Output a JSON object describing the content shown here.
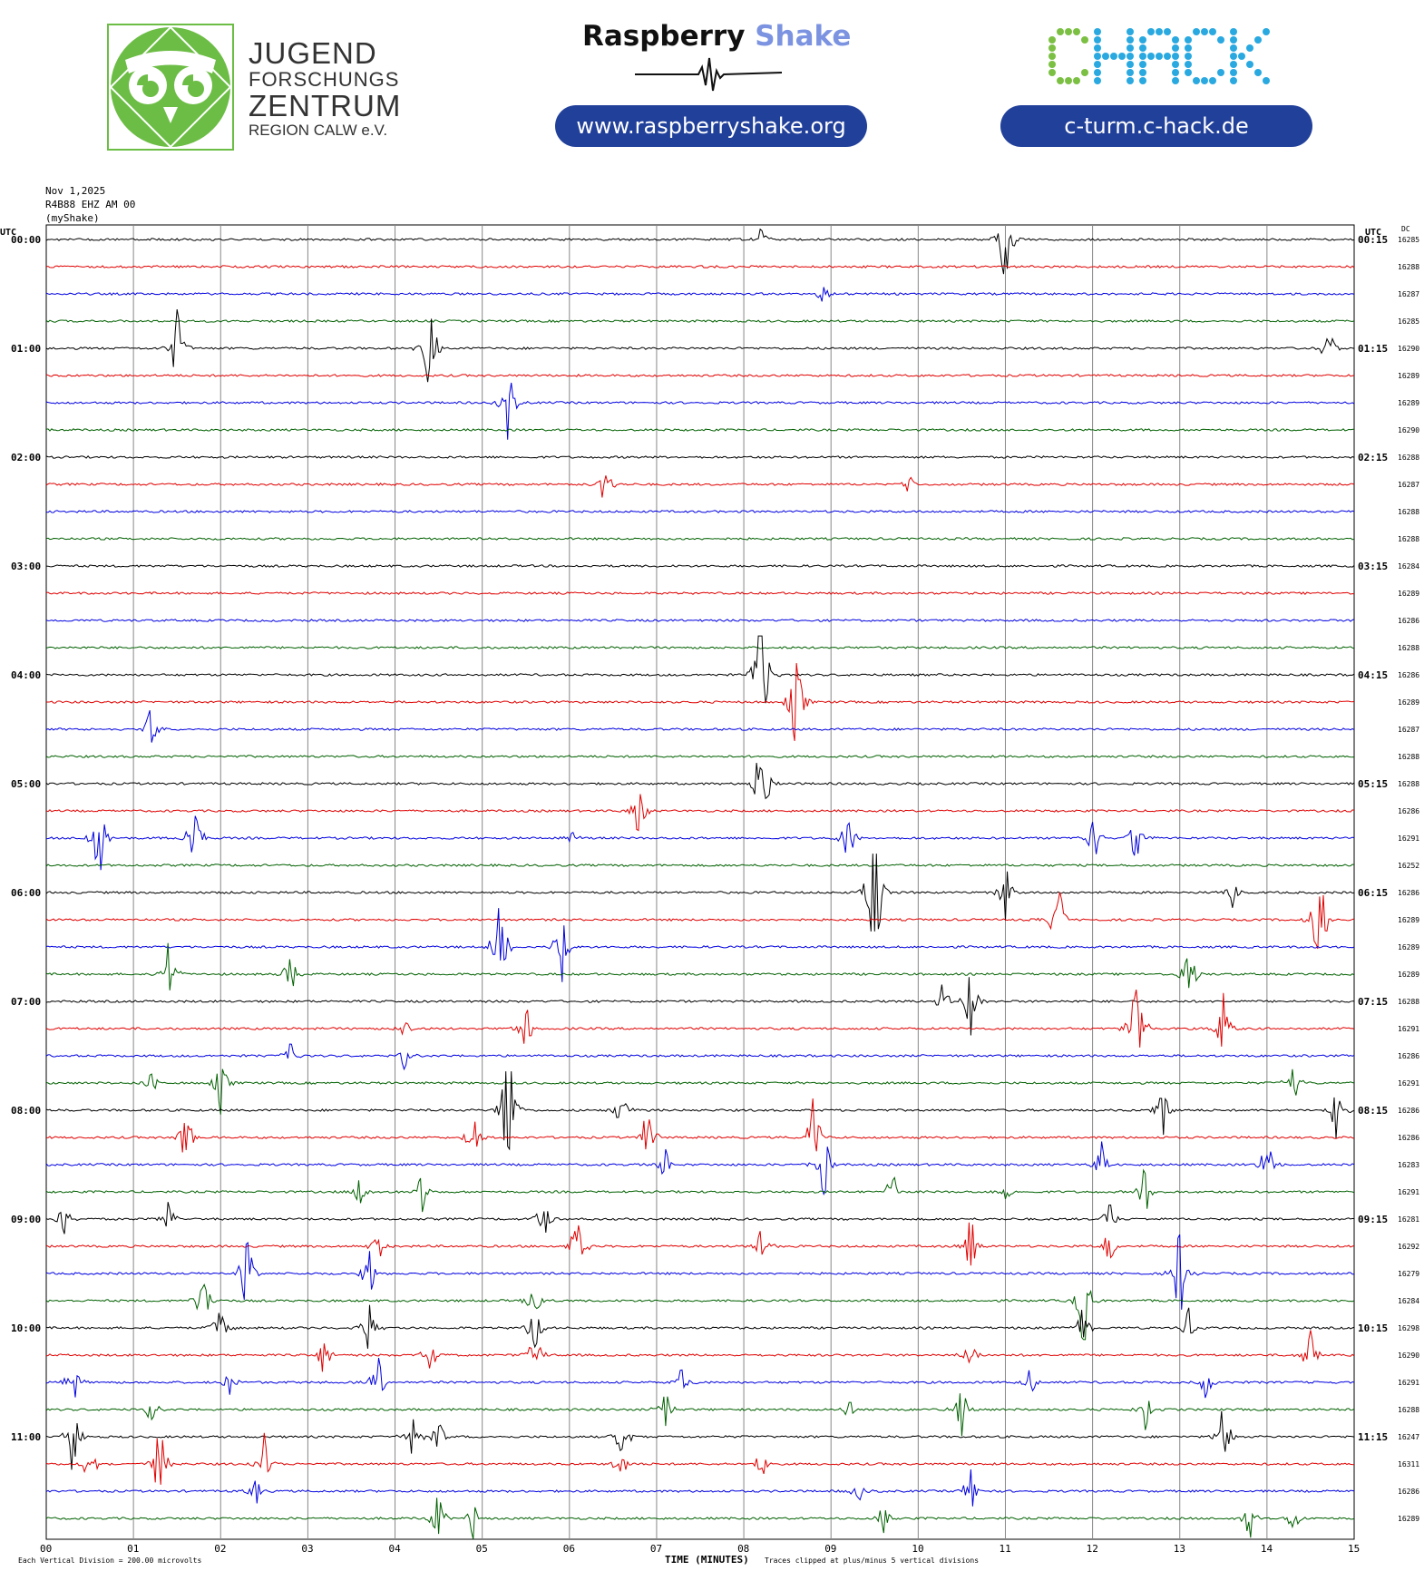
{
  "header": {
    "jfz": {
      "line1": "JUGEND",
      "line2": "FORSCHUNGS",
      "line3": "ZENTRUM",
      "line4": "REGION CALW e.V."
    },
    "raspberry_brand": {
      "word1": "Raspberry",
      "word2": "Shake"
    },
    "raspberry_url": "www.raspberryshake.org",
    "chack_logo_text": "CHACK",
    "chack_url": "c-turm.c-hack.de"
  },
  "meta": {
    "date": "Nov 1,2025",
    "station": "R4B88 EHZ AM 00",
    "network": "(myShake)"
  },
  "colors": {
    "trace_cycle": [
      "#000000",
      "#e00000",
      "#0000e0",
      "#006000"
    ],
    "grid": "#888888",
    "green_logo": "#6cbd45",
    "pill": "#21409a"
  },
  "chart_data": {
    "type": "helicorder",
    "xlabel": "TIME (MINUTES)",
    "x_ticks": [
      "00",
      "01",
      "02",
      "03",
      "04",
      "05",
      "06",
      "07",
      "08",
      "09",
      "10",
      "11",
      "12",
      "13",
      "14",
      "15"
    ],
    "xlim": [
      0,
      15
    ],
    "left_axis_label": "UTC",
    "right_axis_label": "UTC",
    "dc_label": "DC",
    "left_times": [
      "00:00",
      "01:00",
      "02:00",
      "03:00",
      "04:00",
      "05:00",
      "06:00",
      "07:00",
      "08:00",
      "09:00",
      "10:00",
      "11:00"
    ],
    "right_times": [
      "00:15",
      "01:15",
      "02:15",
      "03:15",
      "04:15",
      "05:15",
      "06:15",
      "07:15",
      "08:15",
      "09:15",
      "10:15",
      "11:15"
    ],
    "dc_values": [
      "16285",
      "16288",
      "16287",
      "16285",
      "16290",
      "16289",
      "16289",
      "16290",
      "16288",
      "16287",
      "16288",
      "16288",
      "16284",
      "16289",
      "16286",
      "16288",
      "16286",
      "16289",
      "16287",
      "16288",
      "16288",
      "16286",
      "16291",
      "16252",
      "16286",
      "16289",
      "16289",
      "16289",
      "16288",
      "16291",
      "16286",
      "16291",
      "16286",
      "16286",
      "16283",
      "16291",
      "16281",
      "16292",
      "16279",
      "16284",
      "16298",
      "16290",
      "16291",
      "16288",
      "16247",
      "16311",
      "16286",
      "16289"
    ],
    "vertical_division_note": "Each Vertical Division =  200.00 microvolts",
    "clip_note": "Traces clipped at plus/minus 5 vertical divisions",
    "rows": 48,
    "events": [
      {
        "row": 0,
        "min": 8.2,
        "amp": 0.5
      },
      {
        "row": 0,
        "min": 11.0,
        "amp": 2.5
      },
      {
        "row": 2,
        "min": 8.9,
        "amp": 0.4
      },
      {
        "row": 4,
        "min": 1.5,
        "amp": 2.0
      },
      {
        "row": 4,
        "min": 4.4,
        "amp": 2.5
      },
      {
        "row": 4,
        "min": 14.7,
        "amp": 1.2
      },
      {
        "row": 6,
        "min": 5.3,
        "amp": 1.6
      },
      {
        "row": 9,
        "min": 6.4,
        "amp": 1.2
      },
      {
        "row": 9,
        "min": 9.9,
        "amp": 0.4
      },
      {
        "row": 16,
        "min": 8.2,
        "amp": 4.0
      },
      {
        "row": 17,
        "min": 8.6,
        "amp": 2.5
      },
      {
        "row": 18,
        "min": 1.2,
        "amp": 1.1
      },
      {
        "row": 20,
        "min": 8.2,
        "amp": 3.0
      },
      {
        "row": 21,
        "min": 6.8,
        "amp": 1.3
      },
      {
        "row": 22,
        "min": 0.6,
        "amp": 2.5
      },
      {
        "row": 22,
        "min": 1.7,
        "amp": 2.2
      },
      {
        "row": 22,
        "min": 6.0,
        "amp": 0.6
      },
      {
        "row": 22,
        "min": 9.2,
        "amp": 1.2
      },
      {
        "row": 22,
        "min": 12.0,
        "amp": 1.6
      },
      {
        "row": 22,
        "min": 12.5,
        "amp": 1.3
      },
      {
        "row": 24,
        "min": 9.5,
        "amp": 5.0
      },
      {
        "row": 24,
        "min": 11.0,
        "amp": 1.3
      },
      {
        "row": 24,
        "min": 13.6,
        "amp": 0.7
      },
      {
        "row": 25,
        "min": 11.6,
        "amp": 2.0
      },
      {
        "row": 25,
        "min": 14.6,
        "amp": 3.0
      },
      {
        "row": 26,
        "min": 5.2,
        "amp": 2.5
      },
      {
        "row": 26,
        "min": 5.9,
        "amp": 2.0
      },
      {
        "row": 27,
        "min": 1.4,
        "amp": 1.5
      },
      {
        "row": 27,
        "min": 2.8,
        "amp": 1.0
      },
      {
        "row": 27,
        "min": 13.1,
        "amp": 1.5
      },
      {
        "row": 28,
        "min": 10.3,
        "amp": 1.2
      },
      {
        "row": 28,
        "min": 10.6,
        "amp": 1.6
      },
      {
        "row": 29,
        "min": 4.1,
        "amp": 0.5
      },
      {
        "row": 29,
        "min": 5.5,
        "amp": 1.2
      },
      {
        "row": 29,
        "min": 12.5,
        "amp": 3.5
      },
      {
        "row": 29,
        "min": 13.5,
        "amp": 1.5
      },
      {
        "row": 30,
        "min": 2.8,
        "amp": 0.6
      },
      {
        "row": 30,
        "min": 4.1,
        "amp": 0.6
      },
      {
        "row": 31,
        "min": 1.2,
        "amp": 0.5
      },
      {
        "row": 31,
        "min": 2.0,
        "amp": 1.2
      },
      {
        "row": 31,
        "min": 14.3,
        "amp": 1.2
      },
      {
        "row": 32,
        "min": 5.3,
        "amp": 5.0
      },
      {
        "row": 32,
        "min": 6.6,
        "amp": 1.2
      },
      {
        "row": 32,
        "min": 12.8,
        "amp": 1.5
      },
      {
        "row": 32,
        "min": 14.8,
        "amp": 1.5
      },
      {
        "row": 33,
        "min": 1.6,
        "amp": 1.5
      },
      {
        "row": 33,
        "min": 4.9,
        "amp": 1.0
      },
      {
        "row": 33,
        "min": 6.9,
        "amp": 1.6
      },
      {
        "row": 33,
        "min": 8.8,
        "amp": 2.0
      },
      {
        "row": 34,
        "min": 7.1,
        "amp": 0.8
      },
      {
        "row": 34,
        "min": 8.9,
        "amp": 2.5
      },
      {
        "row": 34,
        "min": 12.1,
        "amp": 1.0
      },
      {
        "row": 34,
        "min": 14.0,
        "amp": 1.3
      },
      {
        "row": 35,
        "min": 3.6,
        "amp": 0.8
      },
      {
        "row": 35,
        "min": 4.3,
        "amp": 1.0
      },
      {
        "row": 35,
        "min": 9.7,
        "amp": 1.0
      },
      {
        "row": 35,
        "min": 11.0,
        "amp": 0.7
      },
      {
        "row": 35,
        "min": 12.6,
        "amp": 1.2
      },
      {
        "row": 36,
        "min": 0.2,
        "amp": 0.8
      },
      {
        "row": 36,
        "min": 1.4,
        "amp": 0.9
      },
      {
        "row": 36,
        "min": 5.7,
        "amp": 1.2
      },
      {
        "row": 36,
        "min": 12.2,
        "amp": 0.8
      },
      {
        "row": 37,
        "min": 3.8,
        "amp": 0.8
      },
      {
        "row": 37,
        "min": 6.1,
        "amp": 2.5
      },
      {
        "row": 37,
        "min": 8.2,
        "amp": 1.2
      },
      {
        "row": 37,
        "min": 10.6,
        "amp": 1.5
      },
      {
        "row": 37,
        "min": 12.2,
        "amp": 1.0
      },
      {
        "row": 38,
        "min": 2.3,
        "amp": 2.0
      },
      {
        "row": 38,
        "min": 3.7,
        "amp": 1.2
      },
      {
        "row": 38,
        "min": 13.0,
        "amp": 2.5
      },
      {
        "row": 39,
        "min": 1.8,
        "amp": 1.5
      },
      {
        "row": 39,
        "min": 5.6,
        "amp": 1.3
      },
      {
        "row": 39,
        "min": 11.9,
        "amp": 2.5
      },
      {
        "row": 40,
        "min": 2.0,
        "amp": 1.5
      },
      {
        "row": 40,
        "min": 3.7,
        "amp": 1.2
      },
      {
        "row": 40,
        "min": 5.6,
        "amp": 1.2
      },
      {
        "row": 40,
        "min": 11.9,
        "amp": 1.5
      },
      {
        "row": 40,
        "min": 13.1,
        "amp": 0.8
      },
      {
        "row": 41,
        "min": 3.2,
        "amp": 1.3
      },
      {
        "row": 41,
        "min": 4.4,
        "amp": 0.8
      },
      {
        "row": 41,
        "min": 5.6,
        "amp": 1.2
      },
      {
        "row": 41,
        "min": 10.6,
        "amp": 0.8
      },
      {
        "row": 41,
        "min": 14.5,
        "amp": 1.5
      },
      {
        "row": 42,
        "min": 0.3,
        "amp": 1.2
      },
      {
        "row": 42,
        "min": 2.1,
        "amp": 0.8
      },
      {
        "row": 42,
        "min": 3.8,
        "amp": 1.2
      },
      {
        "row": 42,
        "min": 7.3,
        "amp": 1.0
      },
      {
        "row": 42,
        "min": 11.3,
        "amp": 0.8
      },
      {
        "row": 42,
        "min": 13.3,
        "amp": 0.8
      },
      {
        "row": 43,
        "min": 1.2,
        "amp": 0.6
      },
      {
        "row": 43,
        "min": 7.1,
        "amp": 1.0
      },
      {
        "row": 43,
        "min": 9.2,
        "amp": 0.6
      },
      {
        "row": 43,
        "min": 10.5,
        "amp": 1.2
      },
      {
        "row": 43,
        "min": 12.6,
        "amp": 1.0
      },
      {
        "row": 44,
        "min": 0.3,
        "amp": 2.0
      },
      {
        "row": 44,
        "min": 4.2,
        "amp": 1.2
      },
      {
        "row": 44,
        "min": 4.5,
        "amp": 0.8
      },
      {
        "row": 44,
        "min": 6.6,
        "amp": 1.2
      },
      {
        "row": 44,
        "min": 13.5,
        "amp": 1.5
      },
      {
        "row": 45,
        "min": 0.5,
        "amp": 1.0
      },
      {
        "row": 45,
        "min": 1.3,
        "amp": 2.0
      },
      {
        "row": 45,
        "min": 2.5,
        "amp": 1.2
      },
      {
        "row": 45,
        "min": 6.6,
        "amp": 1.0
      },
      {
        "row": 45,
        "min": 8.2,
        "amp": 0.8
      },
      {
        "row": 46,
        "min": 2.4,
        "amp": 0.8
      },
      {
        "row": 46,
        "min": 9.3,
        "amp": 0.6
      },
      {
        "row": 46,
        "min": 10.6,
        "amp": 1.2
      },
      {
        "row": 47,
        "min": 4.5,
        "amp": 1.3
      },
      {
        "row": 47,
        "min": 4.9,
        "amp": 1.0
      },
      {
        "row": 47,
        "min": 9.6,
        "amp": 0.8
      },
      {
        "row": 47,
        "min": 13.8,
        "amp": 1.0
      },
      {
        "row": 47,
        "min": 14.3,
        "amp": 0.8
      }
    ]
  }
}
